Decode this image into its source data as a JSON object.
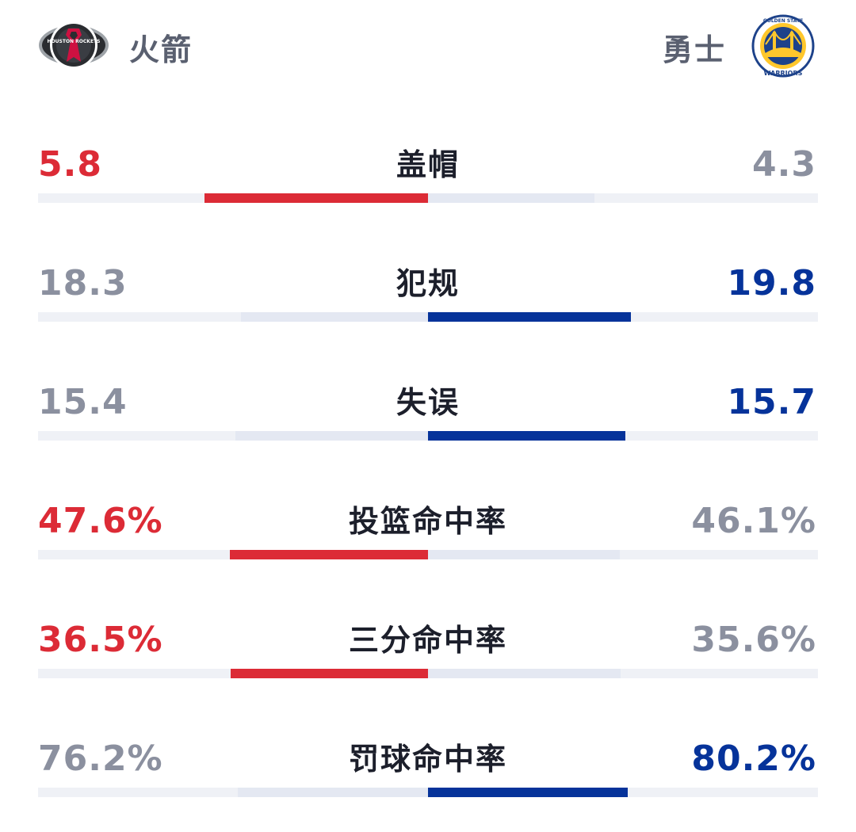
{
  "colors": {
    "home_accent": "#dc2b36",
    "away_accent": "#06339a",
    "muted_value": "#8b909f",
    "bar_muted": "#e4e8f2",
    "track": "#eff1f6"
  },
  "home": {
    "name": "火箭",
    "logo_icon": "houston-rockets-logo",
    "logo_text": "HOUSTON ROCKETS"
  },
  "away": {
    "name": "勇士",
    "logo_icon": "golden-state-warriors-logo",
    "logo_text_top": "GOLDEN STATE",
    "logo_text_bottom": "WARRIORS"
  },
  "stats": [
    {
      "label": "盖帽",
      "home": "5.8",
      "away": "4.3",
      "home_share": 0.574,
      "away_share": 0.426,
      "leader": "home"
    },
    {
      "label": "犯规",
      "home": "18.3",
      "away": "19.8",
      "home_share": 0.48,
      "away_share": 0.52,
      "leader": "away"
    },
    {
      "label": "失误",
      "home": "15.4",
      "away": "15.7",
      "home_share": 0.495,
      "away_share": 0.505,
      "leader": "away"
    },
    {
      "label": "投篮命中率",
      "home": "47.6%",
      "away": "46.1%",
      "home_share": 0.508,
      "away_share": 0.492,
      "leader": "home"
    },
    {
      "label": "三分命中率",
      "home": "36.5%",
      "away": "35.6%",
      "home_share": 0.506,
      "away_share": 0.494,
      "leader": "home"
    },
    {
      "label": "罚球命中率",
      "home": "76.2%",
      "away": "80.2%",
      "home_share": 0.487,
      "away_share": 0.513,
      "leader": "away"
    }
  ]
}
